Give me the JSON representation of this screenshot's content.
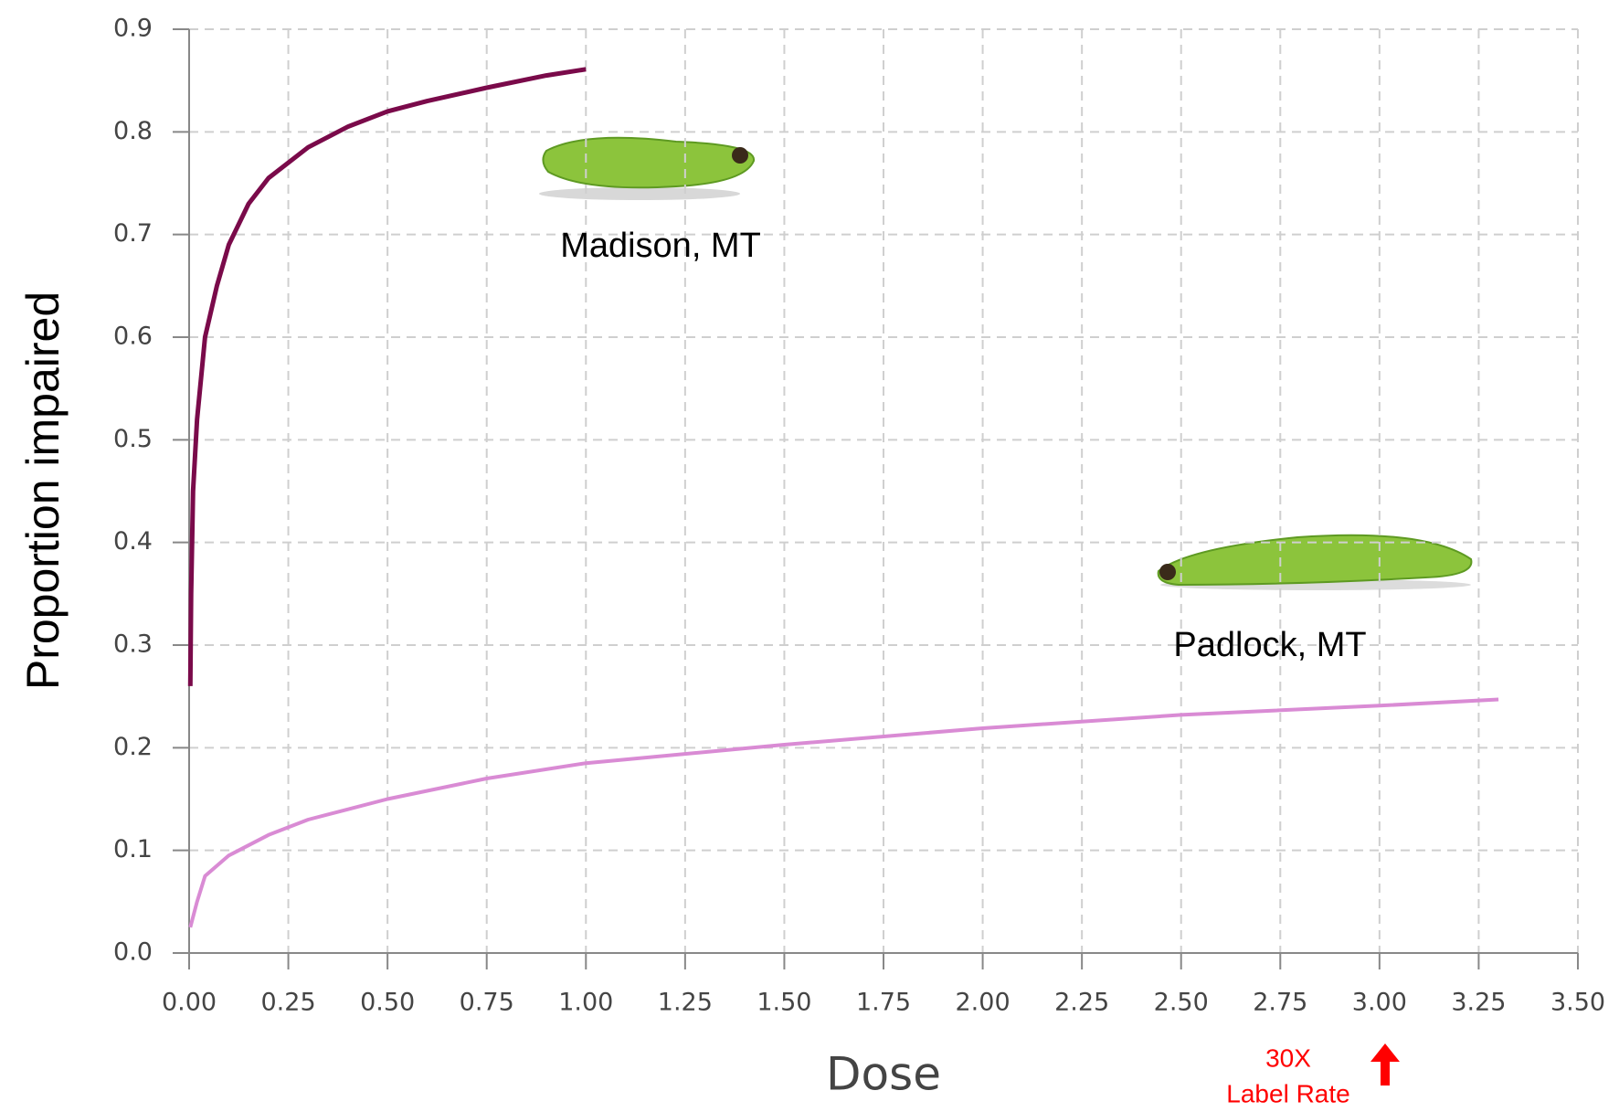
{
  "chart_data": {
    "type": "line",
    "x_label": "Dose",
    "y_label": "Proportion impaired",
    "series": [
      {
        "name": "Madison, MT",
        "color": "#7a0a4a",
        "x": [
          0.003,
          0.005,
          0.01,
          0.02,
          0.04,
          0.07,
          0.1,
          0.15,
          0.2,
          0.3,
          0.4,
          0.5,
          0.6,
          0.75,
          0.9,
          1.0
        ],
        "values": [
          0.26,
          0.35,
          0.45,
          0.52,
          0.6,
          0.65,
          0.69,
          0.73,
          0.755,
          0.785,
          0.805,
          0.82,
          0.83,
          0.843,
          0.855,
          0.861
        ]
      },
      {
        "name": "Padlock, MT",
        "color": "#d98bd4",
        "x": [
          0.003,
          0.02,
          0.04,
          0.1,
          0.2,
          0.3,
          0.5,
          0.75,
          1.0,
          1.5,
          2.0,
          2.5,
          3.0,
          3.3
        ],
        "values": [
          0.025,
          0.05,
          0.075,
          0.095,
          0.115,
          0.13,
          0.15,
          0.17,
          0.185,
          0.203,
          0.219,
          0.232,
          0.241,
          0.247
        ]
      }
    ],
    "annotations": [
      "30X",
      "Label Rate"
    ],
    "xlim": [
      0,
      3.5
    ],
    "xticks": [
      {
        "value": 0,
        "label": "0.00"
      },
      {
        "value": 0.25,
        "label": "0.25"
      },
      {
        "value": 0.5,
        "label": "0.50"
      },
      {
        "value": 0.75,
        "label": "0.75"
      },
      {
        "value": 1,
        "label": "1.00"
      },
      {
        "value": 1.25,
        "label": "1.25"
      },
      {
        "value": 1.5,
        "label": "1.50"
      },
      {
        "value": 1.75,
        "label": "1.75"
      },
      {
        "value": 2,
        "label": "2.00"
      },
      {
        "value": 2.25,
        "label": "2.25"
      },
      {
        "value": 2.5,
        "label": "2.50"
      },
      {
        "value": 2.75,
        "label": "2.75"
      },
      {
        "value": 3,
        "label": "3.00"
      },
      {
        "value": 3.25,
        "label": "3.25"
      },
      {
        "value": 3.5,
        "label": "3.50"
      }
    ],
    "ylim": [
      0,
      0.9
    ],
    "yticks": [
      {
        "value": 0,
        "label": "0.0"
      },
      0.1,
      0.2,
      0.3,
      0.4,
      0.5,
      0.6,
      0.7,
      0.8,
      0.9
    ],
    "grid": true
  }
}
